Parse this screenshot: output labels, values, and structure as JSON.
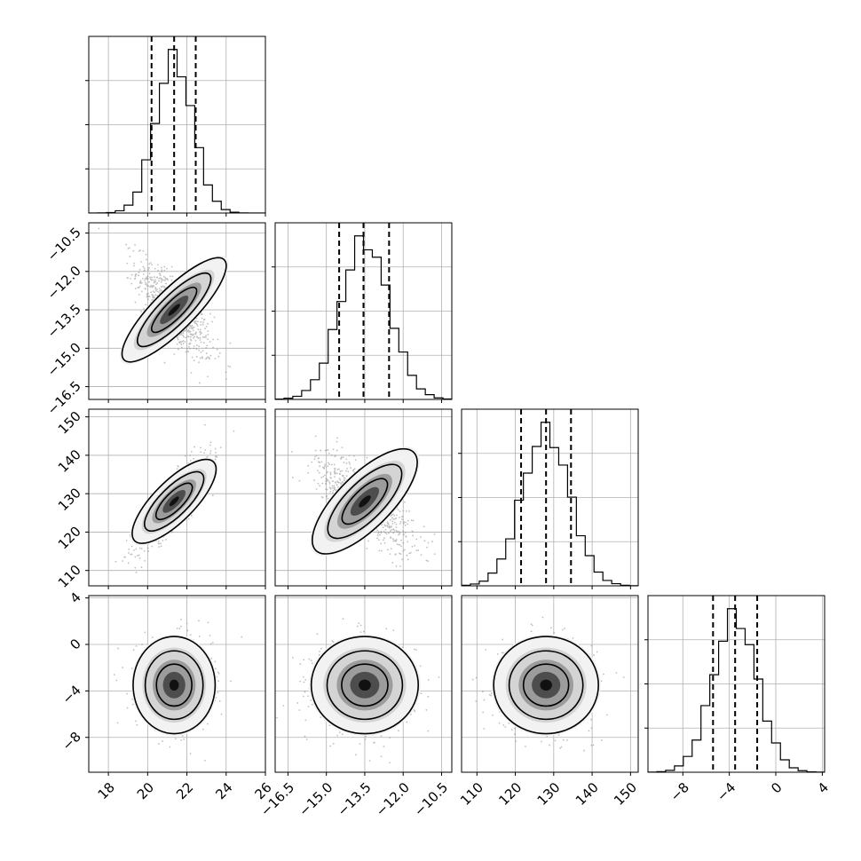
{
  "chart_data": {
    "type": "corner",
    "grid": true,
    "colors": {
      "marks": "#000000",
      "points": "#8c8c8c",
      "grid": "#b0b0b0"
    },
    "parameters": [
      {
        "range": [
          17,
          26
        ],
        "ticks": [
          18,
          20,
          22,
          24,
          26
        ],
        "tick_labels": [
          "18",
          "20",
          "22",
          "24",
          "26"
        ],
        "mean": 21.35,
        "sd": 0.95,
        "quantiles": [
          20.2,
          21.35,
          22.45
        ]
      },
      {
        "range": [
          -17,
          -10.1
        ],
        "ticks": [
          -16.5,
          -15.0,
          -13.5,
          -12.0,
          -10.5
        ],
        "tick_labels": [
          "−16.5",
          "−15.0",
          "−13.5",
          "−12.0",
          "−10.5"
        ],
        "mean": -13.5,
        "sd": 0.95,
        "quantiles": [
          -14.5,
          -13.55,
          -12.55
        ]
      },
      {
        "range": [
          106,
          152
        ],
        "ticks": [
          110,
          120,
          130,
          140,
          150
        ],
        "tick_labels": [
          "110",
          "120",
          "130",
          "140",
          "150"
        ],
        "mean": 128,
        "sd": 6.2,
        "quantiles": [
          121.5,
          128,
          134.5
        ]
      },
      {
        "range": [
          -11,
          4.2
        ],
        "ticks": [
          -8,
          -4,
          0,
          4
        ],
        "tick_labels": [
          "−8",
          "−4",
          "0",
          "4"
        ],
        "mean": -3.5,
        "sd": 1.9,
        "quantiles": [
          -5.4,
          -3.5,
          -1.6
        ]
      }
    ],
    "correlations": [
      {
        "pair": [
          1,
          0
        ],
        "rho": -0.75
      },
      {
        "pair": [
          2,
          0
        ],
        "rho": 0.85
      },
      {
        "pair": [
          2,
          1
        ],
        "rho": -0.75
      },
      {
        "pair": [
          3,
          0
        ],
        "rho": 0.0
      },
      {
        "pair": [
          3,
          1
        ],
        "rho": 0.0
      },
      {
        "pair": [
          3,
          2
        ],
        "rho": 0.0
      }
    ]
  }
}
